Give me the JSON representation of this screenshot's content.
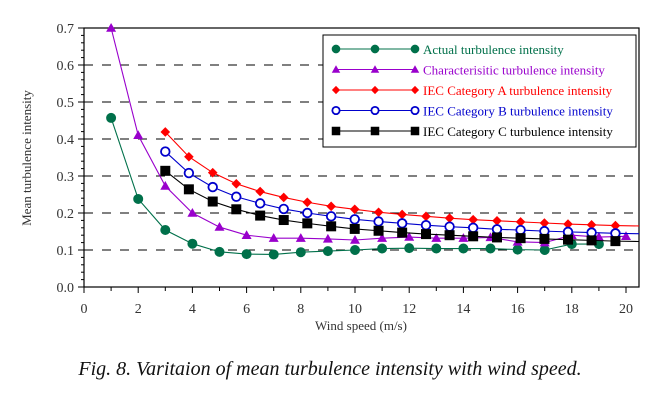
{
  "chart_data": {
    "type": "line",
    "title": "",
    "xlabel": "Wind speed (m/s)",
    "ylabel": "Mean turbulence intensity",
    "xlim": [
      0,
      20.5
    ],
    "ylim": [
      0,
      0.7
    ],
    "xticks": [
      0,
      2,
      4,
      6,
      8,
      10,
      12,
      14,
      16,
      18,
      20
    ],
    "yticks": [
      0.0,
      0.1,
      0.2,
      0.3,
      0.4,
      0.5,
      0.6,
      0.7
    ],
    "ytick_labels": [
      "0.0",
      "0.1",
      "0.2",
      "0.3",
      "0.4",
      "0.5",
      "0.6",
      "0.7"
    ],
    "grid": "horizontal dashed",
    "legend_position": "top-right",
    "series": [
      {
        "name": "Actual turbulence intensity",
        "color": "#00704a",
        "marker": "circle",
        "x": [
          1,
          2,
          3,
          4,
          5,
          6,
          7,
          8,
          9,
          10,
          11,
          12,
          13,
          14,
          15,
          16,
          17,
          18,
          19
        ],
        "y": [
          0.457,
          0.238,
          0.154,
          0.117,
          0.095,
          0.089,
          0.088,
          0.094,
          0.097,
          0.1,
          0.104,
          0.105,
          0.104,
          0.104,
          0.104,
          0.101,
          0.1,
          0.116,
          0.116
        ]
      },
      {
        "name": "Characterisitic turbulence intensity",
        "color": "#9900cc",
        "marker": "triangle",
        "x": [
          1,
          2,
          3,
          4,
          5,
          6,
          7,
          8,
          9,
          10,
          11,
          12,
          13,
          14,
          15,
          16,
          17,
          18,
          19,
          20
        ],
        "y": [
          0.7,
          0.41,
          0.273,
          0.2,
          0.162,
          0.14,
          0.132,
          0.132,
          0.13,
          0.127,
          0.132,
          0.135,
          0.132,
          0.132,
          0.134,
          0.122,
          0.12,
          0.14,
          0.135,
          0.137
        ]
      },
      {
        "name": "IEC Category A turbulence intensity",
        "color": "#ff0000",
        "marker": "diamond",
        "x": [
          3.0,
          3.87,
          4.75,
          5.62,
          6.5,
          7.37,
          8.24,
          9.12,
          9.99,
          10.87,
          11.74,
          12.62,
          13.49,
          14.36,
          15.24,
          16.11,
          16.99,
          17.86,
          18.73,
          19.61
        ],
        "y": [
          0.419,
          0.352,
          0.309,
          0.279,
          0.258,
          0.242,
          0.229,
          0.218,
          0.21,
          0.202,
          0.196,
          0.191,
          0.186,
          0.182,
          0.179,
          0.176,
          0.173,
          0.17,
          0.168,
          0.166
        ]
      },
      {
        "name": "IEC Category B turbulence intensity",
        "color": "#0000cc",
        "marker": "open-circle",
        "x": [
          3.0,
          3.87,
          4.75,
          5.62,
          6.5,
          7.37,
          8.24,
          9.12,
          9.99,
          10.87,
          11.74,
          12.62,
          13.49,
          14.36,
          15.24,
          16.11,
          16.99,
          17.86,
          18.73,
          19.61
        ],
        "y": [
          0.366,
          0.308,
          0.27,
          0.244,
          0.226,
          0.211,
          0.2,
          0.191,
          0.183,
          0.177,
          0.172,
          0.167,
          0.163,
          0.16,
          0.156,
          0.154,
          0.151,
          0.149,
          0.147,
          0.145
        ]
      },
      {
        "name": "IEC Category C turbulence intensity",
        "color": "#000000",
        "marker": "square",
        "x": [
          3.0,
          3.87,
          4.75,
          5.62,
          6.5,
          7.37,
          8.24,
          9.12,
          9.99,
          10.87,
          11.74,
          12.62,
          13.49,
          14.36,
          15.24,
          16.11,
          16.99,
          17.86,
          18.73,
          19.61
        ],
        "y": [
          0.314,
          0.264,
          0.231,
          0.21,
          0.193,
          0.181,
          0.172,
          0.164,
          0.157,
          0.152,
          0.147,
          0.143,
          0.14,
          0.137,
          0.134,
          0.132,
          0.13,
          0.128,
          0.126,
          0.124
        ]
      }
    ]
  },
  "caption": "Fig. 8. Varitaion of mean turbulence intensity with wind speed."
}
